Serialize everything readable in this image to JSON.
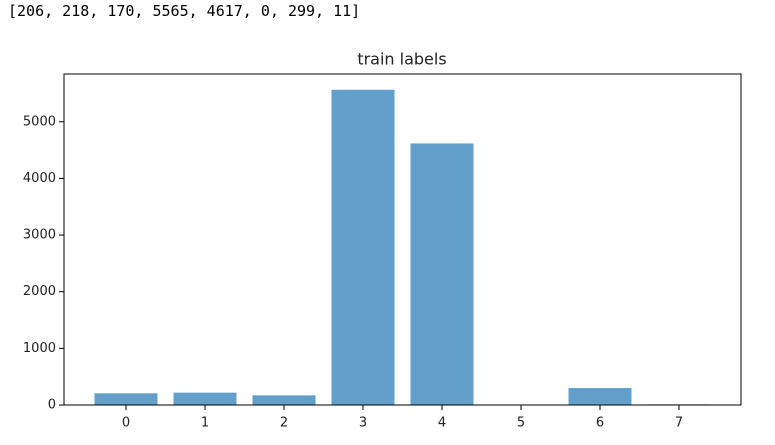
{
  "output_text": "[206, 218, 170, 5565, 4617, 0, 299, 11]",
  "chart_data": {
    "type": "bar",
    "title": "train labels",
    "categories": [
      "0",
      "1",
      "2",
      "3",
      "4",
      "5",
      "6",
      "7"
    ],
    "values": [
      206,
      218,
      170,
      5565,
      4617,
      0,
      299,
      11
    ],
    "color": "#629fca",
    "ylim": [
      0,
      5843
    ],
    "yticks": [
      0,
      1000,
      2000,
      3000,
      4000,
      5000
    ],
    "grid": false
  }
}
